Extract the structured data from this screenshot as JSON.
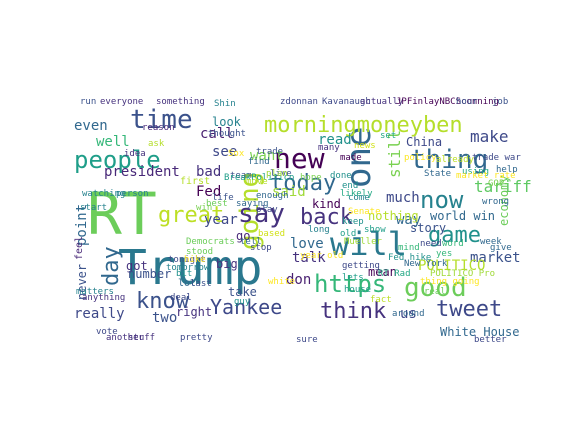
{
  "words": [
    {
      "text": "RT",
      "color": "#6ccd5a"
    },
    {
      "text": "Trump",
      "color": "#2a788e"
    },
    {
      "text": "will",
      "color": "#2a788e"
    },
    {
      "text": "one",
      "color": "#31688e"
    },
    {
      "text": "thing",
      "color": "#31688e"
    },
    {
      "text": "morningmoneyben",
      "color": "#b5de2b"
    },
    {
      "text": "people",
      "color": "#1f9e89"
    },
    {
      "text": "time",
      "color": "#3b528b"
    },
    {
      "text": "new",
      "color": "#440154"
    },
    {
      "text": "going",
      "color": "#b5de2b"
    },
    {
      "text": "today",
      "color": "#31688e"
    },
    {
      "text": "say",
      "color": "#46327e"
    },
    {
      "text": "back",
      "color": "#46327e"
    },
    {
      "text": "great",
      "color": "#bddf26"
    },
    {
      "text": "now",
      "color": "#26828e"
    },
    {
      "text": "game",
      "color": "#21918c"
    },
    {
      "text": "good",
      "color": "#6ccd5a"
    },
    {
      "text": "https",
      "color": "#35b779"
    },
    {
      "text": "know",
      "color": "#3b528b"
    },
    {
      "text": "Yankee",
      "color": "#3e4989"
    },
    {
      "text": "think",
      "color": "#46327e"
    },
    {
      "text": "tweet",
      "color": "#3e4989"
    },
    {
      "text": "day",
      "color": "#31688e"
    },
    {
      "text": "president",
      "color": "#482878"
    },
    {
      "text": "make",
      "color": "#3e4989"
    },
    {
      "text": "tariff",
      "color": "#5ec962"
    },
    {
      "text": "still",
      "color": "#7ad151"
    },
    {
      "text": "much",
      "color": "#3e4989"
    },
    {
      "text": "Fed",
      "color": "#440154"
    },
    {
      "text": "bad",
      "color": "#46327e"
    },
    {
      "text": "see",
      "color": "#3e4989"
    },
    {
      "text": "call",
      "color": "#481f70"
    },
    {
      "text": "look",
      "color": "#26828e"
    },
    {
      "text": "even",
      "color": "#31688e"
    },
    {
      "text": "well",
      "color": "#35b779"
    },
    {
      "text": "want",
      "color": "#7ad151"
    },
    {
      "text": "read",
      "color": "#21918c"
    },
    {
      "text": "said",
      "color": "#a0da39"
    },
    {
      "text": "kind",
      "color": "#440154"
    },
    {
      "text": "year",
      "color": "#3e4989"
    },
    {
      "text": "love",
      "color": "#31688e"
    },
    {
      "text": "talk",
      "color": "#46327e"
    },
    {
      "text": "don",
      "color": "#481f70"
    },
    {
      "text": "market",
      "color": "#3b528b"
    },
    {
      "text": "POLITICO",
      "color": "#b5de2b"
    },
    {
      "text": "way",
      "color": "#31688e"
    },
    {
      "text": "story",
      "color": "#3b528b"
    },
    {
      "text": "world win",
      "color": "#31688e"
    },
    {
      "text": "economy",
      "color": "#6ccd5a"
    },
    {
      "text": "two",
      "color": "#3b528b"
    },
    {
      "text": "really",
      "color": "#3e4989"
    },
    {
      "text": "never",
      "color": "#3b528b"
    },
    {
      "text": "point",
      "color": "#31688e"
    },
    {
      "text": "feel",
      "color": "#482878"
    },
    {
      "text": "got",
      "color": "#46327e"
    },
    {
      "text": "take",
      "color": "#3b528b"
    },
    {
      "text": "go",
      "color": "#482878"
    },
    {
      "text": "big",
      "color": "#46327e"
    },
    {
      "text": "us",
      "color": "#3e4989"
    },
    {
      "text": "mean",
      "color": "#440154"
    },
    {
      "text": "White House",
      "color": "#31688e"
    },
    {
      "text": "China",
      "color": "#3e4989"
    },
    {
      "text": "first",
      "color": "#b5de2b"
    },
    {
      "text": "number",
      "color": "#3b528b"
    },
    {
      "text": "nothing",
      "color": "#b5de2b"
    },
    {
      "text": "right",
      "color": "#46327e"
    },
    {
      "text": "Kavanaugh",
      "color": "#3e4989"
    },
    {
      "text": "zdonnan",
      "color": "#3e4989"
    },
    {
      "text": "something",
      "color": "#46327e"
    },
    {
      "text": "everyone",
      "color": "#46327e"
    },
    {
      "text": "run",
      "color": "#3b528b"
    },
    {
      "text": "actually",
      "color": "#46327e"
    },
    {
      "text": "JPFinlayNBCSconning",
      "color": "#440154"
    },
    {
      "text": "hour",
      "color": "#3b528b"
    },
    {
      "text": "job",
      "color": "#3b528b"
    },
    {
      "text": "lot",
      "color": "#31688e"
    },
    {
      "text": "made",
      "color": "#440154"
    },
    {
      "text": "many",
      "color": "#46327e"
    },
    {
      "text": "need",
      "color": "#3e4989"
    },
    {
      "text": "reason",
      "color": "#482878"
    },
    {
      "text": "team",
      "color": "#3b528b"
    },
    {
      "text": "idea",
      "color": "#46327e"
    },
    {
      "text": "vote",
      "color": "#3e4989"
    },
    {
      "text": "deal",
      "color": "#3e4989"
    },
    {
      "text": "pretty",
      "color": "#3e4989"
    },
    {
      "text": "getting",
      "color": "#3e4989"
    },
    {
      "text": "better",
      "color": "#3e4989"
    },
    {
      "text": "play",
      "color": "#3e4989"
    },
    {
      "text": "stop",
      "color": "#3e4989"
    },
    {
      "text": "tonight",
      "color": "#3e4989"
    },
    {
      "text": "sure",
      "color": "#3e4989"
    },
    {
      "text": "trade war",
      "color": "#3e4989"
    },
    {
      "text": "stuff",
      "color": "#46327e"
    },
    {
      "text": "anything",
      "color": "#46327e"
    },
    {
      "text": "another",
      "color": "#46327e"
    },
    {
      "text": "last",
      "color": "#3b528b"
    },
    {
      "text": "life",
      "color": "#3b528b"
    },
    {
      "text": "live",
      "color": "#3b528b"
    },
    {
      "text": "thought",
      "color": "#3b528b"
    },
    {
      "text": "trade",
      "color": "#3b528b"
    },
    {
      "text": "saying",
      "color": "#31688e"
    },
    {
      "text": "find",
      "color": "#31688e"
    },
    {
      "text": "enough",
      "color": "#31688e"
    },
    {
      "text": "around",
      "color": "#31688e"
    },
    {
      "text": "State",
      "color": "#31688e"
    },
    {
      "text": "New York",
      "color": "#31688e"
    },
    {
      "text": "give",
      "color": "#31688e"
    },
    {
      "text": "wrong",
      "color": "#31688e"
    },
    {
      "text": "week",
      "color": "#31688e"
    },
    {
      "text": "help",
      "color": "#31688e"
    },
    {
      "text": "tell",
      "color": "#31688e"
    },
    {
      "text": "long",
      "color": "#26828e"
    },
    {
      "text": "come",
      "color": "#26828e"
    },
    {
      "text": "matters",
      "color": "#26828e"
    },
    {
      "text": "start",
      "color": "#26828e"
    },
    {
      "text": "watching",
      "color": "#26828e"
    },
    {
      "text": "Shin",
      "color": "#26828e"
    },
    {
      "text": "person",
      "color": "#26828e"
    },
    {
      "text": "tomorrow",
      "color": "#26828e"
    },
    {
      "text": "bit",
      "color": "#21918c"
    },
    {
      "text": "done",
      "color": "#21918c"
    },
    {
      "text": "keep",
      "color": "#21918c"
    },
    {
      "text": "Fed hike",
      "color": "#21918c"
    },
    {
      "text": "end",
      "color": "#21918c"
    },
    {
      "text": "guy",
      "color": "#21918c"
    },
    {
      "text": "old",
      "color": "#1f9e89"
    },
    {
      "text": "show",
      "color": "#1f9e89"
    },
    {
      "text": "BreakPolitico",
      "color": "#1f9e89"
    },
    {
      "text": "lets",
      "color": "#1f9e89"
    },
    {
      "text": "house",
      "color": "#1f9e89"
    },
    {
      "text": "set",
      "color": "#22a884"
    },
    {
      "text": "using",
      "color": "#22a884"
    },
    {
      "text": "likely",
      "color": "#22a884"
    },
    {
      "text": "RT Rad",
      "color": "#22a884"
    },
    {
      "text": "yes",
      "color": "#35b779"
    },
    {
      "text": "word",
      "color": "#35b779"
    },
    {
      "text": "mind",
      "color": "#35b779"
    },
    {
      "text": "real",
      "color": "#6ccd5a"
    },
    {
      "text": "Democrats",
      "color": "#6ccd5a"
    },
    {
      "text": "stood",
      "color": "#6ccd5a"
    },
    {
      "text": "best",
      "color": "#6ccd5a"
    },
    {
      "text": "win",
      "color": "#7ad151"
    },
    {
      "text": "hope",
      "color": "#7ad151"
    },
    {
      "text": "GOP",
      "color": "#7ad151"
    },
    {
      "text": "Mueller",
      "color": "#a0da39"
    },
    {
      "text": "POLITICO Pro",
      "color": "#a0da39"
    },
    {
      "text": "plan",
      "color": "#a0da39"
    },
    {
      "text": "ask",
      "color": "#b5de2b"
    },
    {
      "text": "move",
      "color": "#b5de2b"
    },
    {
      "text": "already",
      "color": "#bddf26"
    },
    {
      "text": "fact",
      "color": "#bddf26"
    },
    {
      "text": "news",
      "color": "#d2e21b"
    },
    {
      "text": "based",
      "color": "#d2e21b"
    },
    {
      "text": "Senate",
      "color": "#fde725"
    },
    {
      "text": "Sox",
      "color": "#fde725"
    },
    {
      "text": "hike",
      "color": "#fde725"
    },
    {
      "text": "policy",
      "color": "#fde725"
    },
    {
      "text": "market rate",
      "color": "#fde725"
    },
    {
      "text": "year old",
      "color": "#fde725"
    },
    {
      "text": "thing going",
      "color": "#fde725"
    },
    {
      "text": "white",
      "color": "#fde725"
    }
  ]
}
